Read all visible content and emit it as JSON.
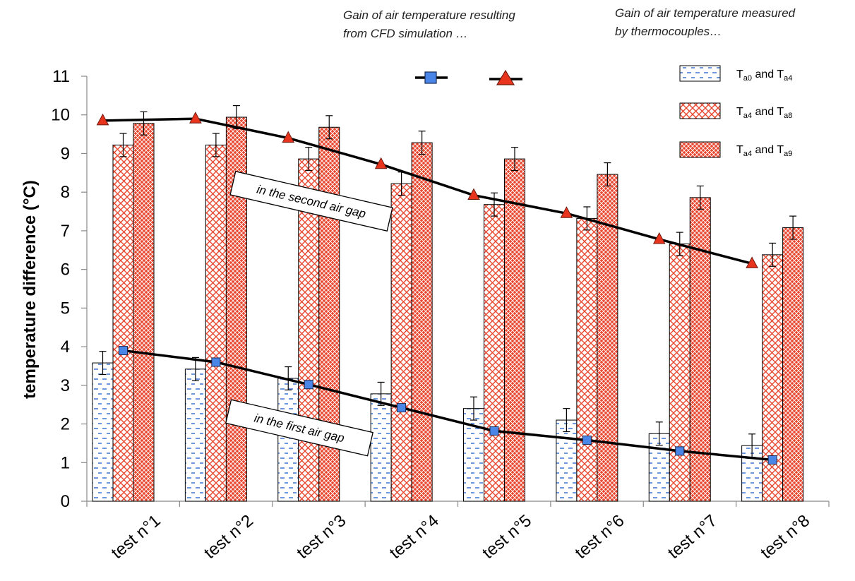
{
  "chart_data": {
    "type": "bar",
    "ylabel": "temperature difference (°C)",
    "xlabel": "",
    "ylim": [
      0,
      11
    ],
    "yticks": [
      0,
      1,
      2,
      3,
      4,
      5,
      6,
      7,
      8,
      9,
      10,
      11
    ],
    "categories": [
      "test n°1",
      "test n°2",
      "test n°3",
      "test n°4",
      "test n°5",
      "test n°6",
      "test n°7",
      "test n°8"
    ],
    "bar_series": [
      {
        "legend": {
          "base": "T",
          "sub1": "a0",
          "mid": " and T",
          "sub2": "a4"
        },
        "values": [
          3.58,
          3.42,
          3.18,
          2.78,
          2.4,
          2.1,
          1.75,
          1.44
        ],
        "errors": [
          0.3,
          0.3,
          0.3,
          0.3,
          0.3,
          0.3,
          0.3,
          0.3
        ],
        "pattern": "dashes",
        "color": "#4a7fd6"
      },
      {
        "legend": {
          "base": "T",
          "sub1": "a4",
          "mid": " and T",
          "sub2": "a8"
        },
        "values": [
          9.22,
          9.22,
          8.86,
          8.22,
          7.68,
          7.32,
          6.66,
          6.38
        ],
        "errors": [
          0.3,
          0.3,
          0.3,
          0.3,
          0.3,
          0.3,
          0.3,
          0.3
        ],
        "pattern": "light-crosshatch",
        "color": "#e8462e"
      },
      {
        "legend": {
          "base": "T",
          "sub1": "a4",
          "mid": " and T",
          "sub2": "a9"
        },
        "values": [
          9.78,
          9.94,
          9.68,
          9.28,
          8.86,
          8.46,
          7.86,
          7.08
        ],
        "errors": [
          0.3,
          0.3,
          0.3,
          0.3,
          0.3,
          0.3,
          0.3,
          0.3
        ],
        "pattern": "dense-crosshatch",
        "color": "#e8462e"
      }
    ],
    "line_series": [
      {
        "marker": "square",
        "color": "#4a86e8",
        "values": [
          3.9,
          3.6,
          3.02,
          2.42,
          1.82,
          1.58,
          1.3,
          1.07
        ]
      },
      {
        "marker": "triangle",
        "color": "#e8341c",
        "values": [
          9.85,
          9.9,
          9.4,
          8.72,
          7.92,
          7.45,
          6.78,
          6.15
        ]
      }
    ],
    "annotations": {
      "cfd_note": [
        "Gain of air temperature resulting",
        "from CFD simulation …"
      ],
      "measured_note": [
        "Gain of air temperature measured",
        "by thermocouples…"
      ],
      "second_gap": "in the second air gap",
      "first_gap": "in the first air gap"
    },
    "grid": false
  }
}
